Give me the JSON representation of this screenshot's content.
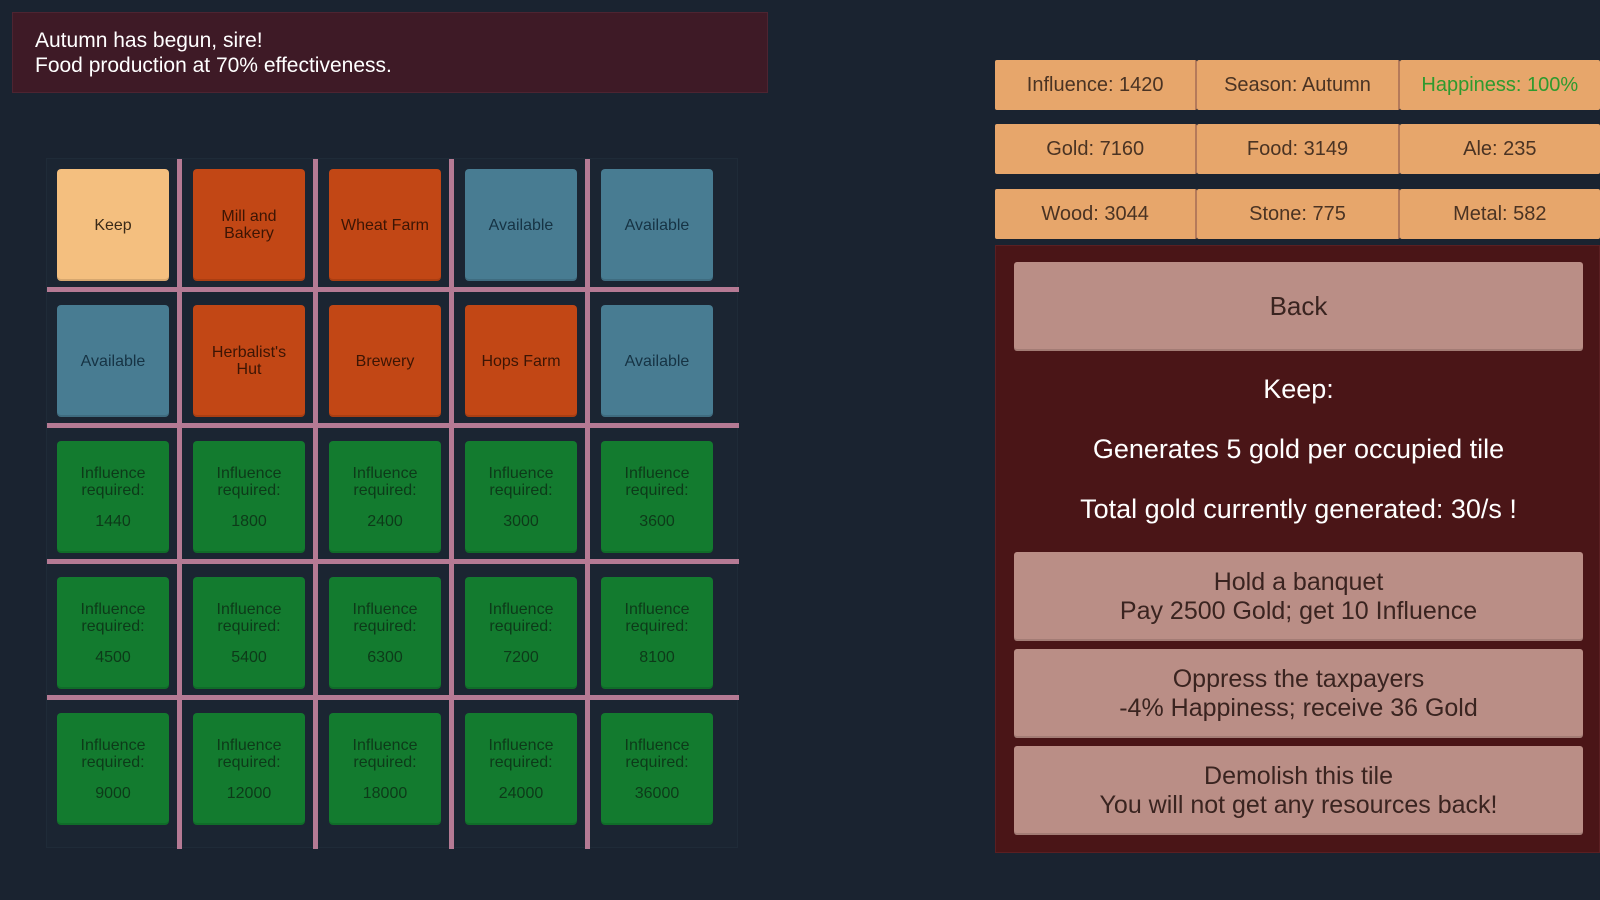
{
  "banner": {
    "line1": "Autumn has begun, sire!",
    "line2": "Food production at 70% effectiveness."
  },
  "grid": {
    "row1": [
      {
        "label": "Keep",
        "kind": "keep"
      },
      {
        "label": "Mill and Bakery",
        "kind": "building"
      },
      {
        "label": "Wheat Farm",
        "kind": "building"
      },
      {
        "label": "Available",
        "kind": "available"
      },
      {
        "label": "Available",
        "kind": "available"
      }
    ],
    "row2": [
      {
        "label": "Available",
        "kind": "available"
      },
      {
        "label": "Herbalist's Hut",
        "kind": "building"
      },
      {
        "label": "Brewery",
        "kind": "building"
      },
      {
        "label": "Hops Farm",
        "kind": "building"
      },
      {
        "label": "Available",
        "kind": "available"
      }
    ],
    "locked_label": "Influence required:",
    "locked_requirements": [
      [
        "1440",
        "1800",
        "2400",
        "3000",
        "3600"
      ],
      [
        "4500",
        "5400",
        "6300",
        "7200",
        "8100"
      ],
      [
        "9000",
        "12000",
        "18000",
        "24000",
        "36000"
      ]
    ]
  },
  "stats": {
    "influence": "Influence: 1420",
    "season": "Season: Autumn",
    "happiness": "Happiness: 100%",
    "gold": "Gold: 7160",
    "food": "Food: 3149",
    "ale": "Ale: 235",
    "wood": "Wood: 3044",
    "stone": "Stone: 775",
    "metal": "Metal: 582"
  },
  "panel": {
    "back_label": "Back",
    "title": "Keep:",
    "description": "Generates 5 gold per occupied tile",
    "total": "Total gold currently generated: 30/s !",
    "actions": [
      {
        "line1": "Hold a banquet",
        "line2": "Pay 2500 Gold; get 10 Influence"
      },
      {
        "line1": "Oppress the taxpayers",
        "line2": "-4% Happiness; receive 36 Gold"
      },
      {
        "line1": "Demolish this tile",
        "line2": "You will not get any resources back!"
      }
    ]
  },
  "colors": {
    "background": "#1a2330",
    "banner": "#3e1a26",
    "keep_tile": "#f4bf7f",
    "building_tile": "#c24715",
    "available_tile": "#487c92",
    "locked_tile": "#137b2f",
    "grid_lines": "#b57a94",
    "stat_box": "#e7a66b",
    "happiness_text": "#2e9a2e",
    "panel": "#4a1517",
    "button": "#ba8e86"
  }
}
